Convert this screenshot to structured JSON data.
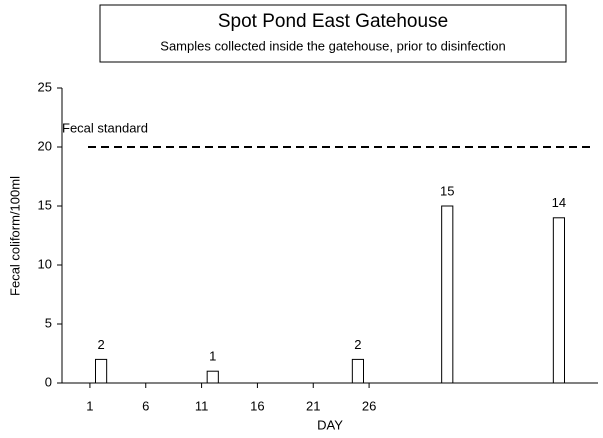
{
  "chart_data": {
    "type": "bar",
    "title": "Spot Pond East Gatehouse",
    "subtitle": "Samples collected inside the gatehouse, prior to disinfection",
    "x_label": "DAY",
    "y_label": "Fecal coliform/100ml",
    "x": [
      2,
      12,
      25,
      33,
      43
    ],
    "values": [
      2,
      1,
      2,
      15,
      14
    ],
    "color": "#ffffff",
    "xlim": [
      -1.5,
      46.5
    ],
    "xticks": [
      1,
      6,
      11,
      16,
      21,
      26
    ],
    "ylim": [
      0,
      25
    ],
    "yticks": [
      0,
      5,
      10,
      15,
      20,
      25
    ],
    "reference_line": {
      "label": "Fecal standard",
      "value": 20
    }
  }
}
